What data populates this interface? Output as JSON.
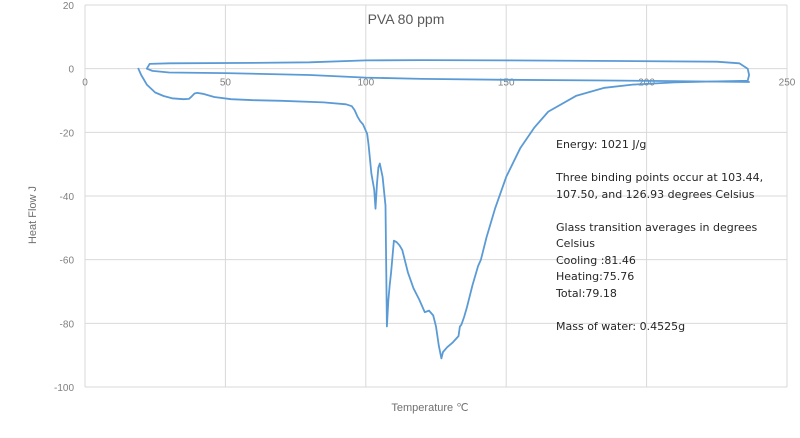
{
  "chart_data": {
    "type": "scatter",
    "title": "PVA 80 ppm",
    "xlabel": "Temperature ℃",
    "ylabel": "Heat Flow  J",
    "xlim": [
      0,
      250
    ],
    "ylim": [
      -100,
      20
    ],
    "x_ticks": [
      0,
      50,
      100,
      150,
      200,
      250
    ],
    "y_ticks": [
      20,
      0,
      -20,
      -40,
      -60,
      -80,
      -100
    ],
    "grid": true,
    "legend": "none",
    "x_tick_labels_position": "at y=0 crossing",
    "series": [
      {
        "name": "Heat Flow",
        "color": "#5b9bd5",
        "points": [
          [
            19,
            0
          ],
          [
            20,
            -2
          ],
          [
            22,
            -5
          ],
          [
            25,
            -7.5
          ],
          [
            28,
            -8.6
          ],
          [
            31,
            -9.3
          ],
          [
            35,
            -9.6
          ],
          [
            37,
            -9.5
          ],
          [
            38,
            -8.7
          ],
          [
            39,
            -7.8
          ],
          [
            40,
            -7.6
          ],
          [
            42,
            -7.9
          ],
          [
            46,
            -8.9
          ],
          [
            52,
            -9.6
          ],
          [
            60,
            -9.9
          ],
          [
            70,
            -10.1
          ],
          [
            85,
            -10.6
          ],
          [
            93,
            -11.2
          ],
          [
            95,
            -11.8
          ],
          [
            96,
            -13
          ],
          [
            97,
            -15
          ],
          [
            98,
            -16.5
          ],
          [
            99,
            -17.5
          ],
          [
            100,
            -19.5
          ],
          [
            100.5,
            -20.5
          ],
          [
            101,
            -24
          ],
          [
            102,
            -33
          ],
          [
            103,
            -38
          ],
          [
            103.44,
            -44
          ],
          [
            104,
            -36
          ],
          [
            104.5,
            -31
          ],
          [
            105,
            -29.8
          ],
          [
            106,
            -34
          ],
          [
            107,
            -43
          ],
          [
            107.5,
            -81
          ],
          [
            108,
            -73
          ],
          [
            108.5,
            -68
          ],
          [
            109,
            -64
          ],
          [
            110,
            -54
          ],
          [
            111,
            -54.5
          ],
          [
            112,
            -55.5
          ],
          [
            113,
            -57
          ],
          [
            115,
            -64
          ],
          [
            117,
            -69
          ],
          [
            119,
            -72.5
          ],
          [
            121,
            -76.5
          ],
          [
            122.5,
            -76
          ],
          [
            124,
            -77.5
          ],
          [
            125,
            -81
          ],
          [
            126,
            -87
          ],
          [
            126.93,
            -91
          ],
          [
            127.5,
            -89
          ],
          [
            129,
            -87.5
          ],
          [
            131,
            -86
          ],
          [
            133,
            -84
          ],
          [
            133.5,
            -81
          ],
          [
            134,
            -80.5
          ],
          [
            135,
            -78
          ],
          [
            136,
            -75
          ],
          [
            138,
            -68
          ],
          [
            140,
            -62
          ],
          [
            141,
            -60
          ],
          [
            143,
            -53
          ],
          [
            146,
            -44
          ],
          [
            150,
            -34
          ],
          [
            155,
            -25
          ],
          [
            160,
            -18.5
          ],
          [
            165,
            -13.5
          ],
          [
            175,
            -8.5
          ],
          [
            185,
            -6
          ],
          [
            195,
            -5
          ],
          [
            210,
            -4.3
          ],
          [
            225,
            -4
          ],
          [
            236,
            -3.8
          ],
          [
            236.5,
            -2
          ],
          [
            236,
            0
          ],
          [
            233,
            1.7
          ],
          [
            225,
            2.2
          ],
          [
            190,
            2.4
          ],
          [
            150,
            2.6
          ],
          [
            120,
            2.7
          ],
          [
            100,
            2.6
          ],
          [
            80,
            2.0
          ],
          [
            60,
            1.8
          ],
          [
            30,
            1.7
          ],
          [
            23,
            1.5
          ],
          [
            22,
            0
          ],
          [
            24,
            -0.7
          ],
          [
            30,
            -1.2
          ],
          [
            50,
            -1.4
          ],
          [
            80,
            -2.0
          ],
          [
            100,
            -2.8
          ],
          [
            120,
            -3.2
          ],
          [
            150,
            -3.5
          ],
          [
            180,
            -3.7
          ],
          [
            210,
            -3.9
          ],
          [
            236.5,
            -4.2
          ]
        ]
      }
    ],
    "annotations": [
      "Energy: 1021 J/g",
      "",
      "Three binding points occur at 103.44,",
      "107.50, and 126.93 degrees Celsius",
      "",
      "Glass transition averages in degrees",
      "Celsius",
      "Cooling :81.46",
      "Heating:75.76",
      "Total:79.18",
      "",
      "Mass of water: 0.4525g"
    ],
    "reported_values": {
      "energy": "1021 J/g",
      "binding_points_celsius": [
        103.44,
        107.5,
        126.93
      ],
      "glass_transition_cooling": 81.46,
      "glass_transition_heating": 75.76,
      "glass_transition_total": 79.18,
      "mass_of_water": "0.4525g"
    }
  },
  "colors": {
    "series": "#5b9bd5",
    "grid": "#d9d9d9",
    "tick_text": "#7f7f7f",
    "title_text": "#595959"
  }
}
